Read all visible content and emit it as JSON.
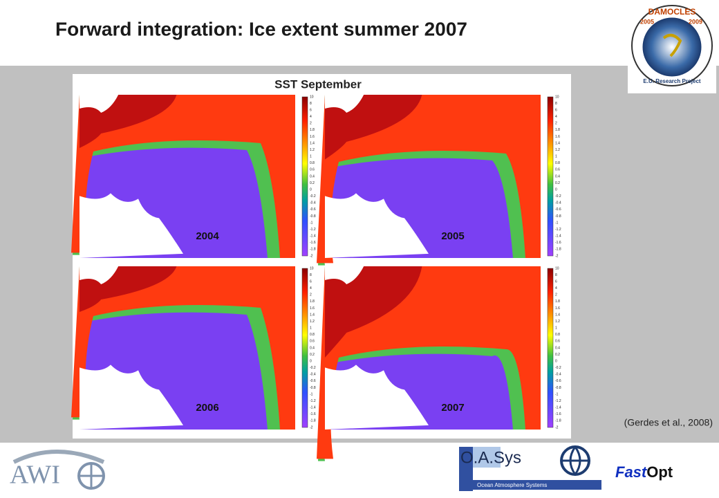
{
  "header": {
    "title": "Forward integration: Ice extent summer 2007"
  },
  "figure": {
    "title": "SST September",
    "panels": [
      {
        "year": "2004"
      },
      {
        "year": "2005"
      },
      {
        "year": "2006"
      },
      {
        "year": "2007"
      }
    ],
    "colorbar_ticks": [
      "10",
      "8",
      "6",
      "4",
      "2",
      "1.8",
      "1.6",
      "1.4",
      "1.2",
      "1",
      "0.8",
      "0.6",
      "0.4",
      "0.2",
      "0",
      "-0.2",
      "-0.4",
      "-0.6",
      "-0.8",
      "-1",
      "-1.2",
      "-1.4",
      "-1.6",
      "-1.8",
      "-2"
    ]
  },
  "citation": "(Gerdes et al., 2008)",
  "logos": {
    "damocles": {
      "name": "DAMOCLES",
      "start": "2005",
      "end": "2009",
      "subtitle": "E.U. Research Project"
    },
    "awi": "AWI",
    "oasys": {
      "name": "O.A.Sys",
      "subtitle": "Ocean Atmosphere Systems"
    },
    "fastopt": {
      "fast": "Fast",
      "opt": "Opt"
    }
  }
}
